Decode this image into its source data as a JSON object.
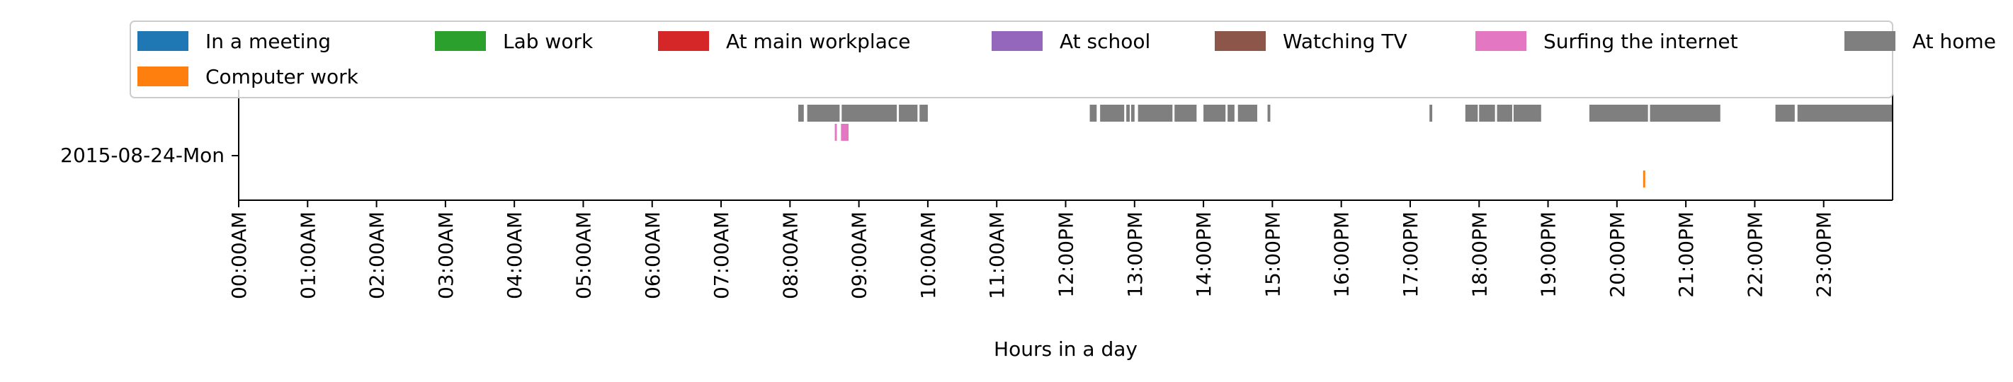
{
  "chart_data": {
    "type": "timeline",
    "ylabel_row": "2015-08-24-Mon",
    "xlabel": "Hours in a day",
    "xlim": [
      0,
      24
    ],
    "xticks": [
      "00:00AM",
      "01:00AM",
      "02:00AM",
      "03:00AM",
      "04:00AM",
      "05:00AM",
      "06:00AM",
      "07:00AM",
      "08:00AM",
      "09:00AM",
      "10:00AM",
      "11:00AM",
      "12:00PM",
      "13:00PM",
      "14:00PM",
      "15:00PM",
      "16:00PM",
      "17:00PM",
      "18:00PM",
      "19:00PM",
      "20:00PM",
      "21:00PM",
      "22:00PM",
      "23:00PM"
    ],
    "legend_position": "top, spanning width",
    "legend": [
      {
        "name": "In a meeting",
        "color": "#1f77b4"
      },
      {
        "name": "Lab work",
        "color": "#2ca02c"
      },
      {
        "name": "At main workplace",
        "color": "#d62728"
      },
      {
        "name": "At school",
        "color": "#9467bd"
      },
      {
        "name": "Watching TV",
        "color": "#8c564b"
      },
      {
        "name": "Surfing the internet",
        "color": "#e377c2"
      },
      {
        "name": "At home",
        "color": "#7f7f7f"
      },
      {
        "name": "Computer work",
        "color": "#ff7f0e"
      }
    ],
    "series": [
      {
        "name": "At home",
        "color": "#7f7f7f",
        "level": 1.0,
        "intervals": [
          [
            8.12,
            8.2
          ],
          [
            8.25,
            8.72
          ],
          [
            8.75,
            9.55
          ],
          [
            9.58,
            9.85
          ],
          [
            9.88,
            10.0
          ],
          [
            12.35,
            12.45
          ],
          [
            12.5,
            12.85
          ],
          [
            12.88,
            12.93
          ],
          [
            12.95,
            13.0
          ],
          [
            13.05,
            13.55
          ],
          [
            13.58,
            13.9
          ],
          [
            14.0,
            14.32
          ],
          [
            14.35,
            14.45
          ],
          [
            14.5,
            14.78
          ],
          [
            14.93,
            14.97
          ],
          [
            17.28,
            17.32
          ],
          [
            17.8,
            17.98
          ],
          [
            18.0,
            18.23
          ],
          [
            18.26,
            18.48
          ],
          [
            18.5,
            18.9
          ],
          [
            19.6,
            20.45
          ],
          [
            20.48,
            21.5
          ],
          [
            22.3,
            22.58
          ],
          [
            22.62,
            24.0
          ]
        ]
      },
      {
        "name": "Surfing the internet",
        "color": "#e377c2",
        "level": 0.55,
        "intervals": [
          [
            8.65,
            8.68
          ],
          [
            8.74,
            8.85
          ]
        ]
      },
      {
        "name": "Computer work",
        "color": "#ff7f0e",
        "level": -0.55,
        "intervals": [
          [
            20.38,
            20.41
          ]
        ]
      }
    ]
  }
}
